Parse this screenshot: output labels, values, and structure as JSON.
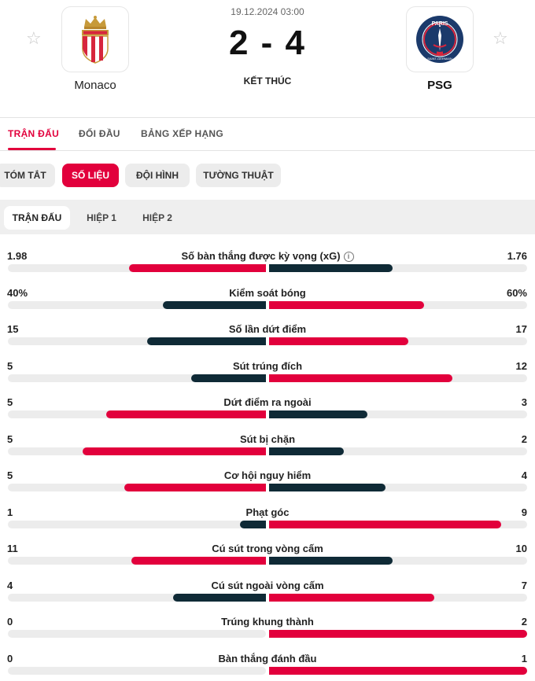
{
  "match": {
    "date": "19.12.2024 03:00",
    "score": "2 - 4",
    "status": "KẾT THÚC",
    "home": {
      "name": "Monaco",
      "logo": "monaco-crest"
    },
    "away": {
      "name": "PSG",
      "logo": "psg-crest"
    }
  },
  "tabs": [
    "TRẬN ĐẤU",
    "ĐỐI ĐẦU",
    "BẢNG XẾP HẠNG"
  ],
  "pills": [
    "TÓM TẮT",
    "SỐ LIỆU",
    "ĐỘI HÌNH",
    "TƯỜNG THUẬT"
  ],
  "periods": [
    "TRẬN ĐẤU",
    "HIỆP 1",
    "HIỆP 2"
  ],
  "colors": {
    "accent": "#e2003c",
    "dark": "#0f2a36",
    "track": "#ececec"
  },
  "stats": [
    {
      "label": "Số bàn thắng được kỳ vọng (xG)",
      "home": "1.98",
      "away": "1.76",
      "home_share": 0.53,
      "away_share": 0.48,
      "winner": "home",
      "info": "i"
    },
    {
      "label": "Kiểm soát bóng",
      "home": "40%",
      "away": "60%",
      "home_share": 0.4,
      "away_share": 0.6,
      "winner": "away"
    },
    {
      "label": "Số lần dứt điểm",
      "home": "15",
      "away": "17",
      "home_share": 0.46,
      "away_share": 0.54,
      "winner": "away"
    },
    {
      "label": "Sút trúng đích",
      "home": "5",
      "away": "12",
      "home_share": 0.29,
      "away_share": 0.71,
      "winner": "away"
    },
    {
      "label": "Dứt điểm ra ngoài",
      "home": "5",
      "away": "3",
      "home_share": 0.62,
      "away_share": 0.38,
      "winner": "home"
    },
    {
      "label": "Sút bị chặn",
      "home": "5",
      "away": "2",
      "home_share": 0.71,
      "away_share": 0.29,
      "winner": "home"
    },
    {
      "label": "Cơ hội nguy hiểm",
      "home": "5",
      "away": "4",
      "home_share": 0.55,
      "away_share": 0.45,
      "winner": "home"
    },
    {
      "label": "Phạt góc",
      "home": "1",
      "away": "9",
      "home_share": 0.1,
      "away_share": 0.9,
      "winner": "away"
    },
    {
      "label": "Cú sút trong vòng cấm",
      "home": "11",
      "away": "10",
      "home_share": 0.52,
      "away_share": 0.48,
      "winner": "home"
    },
    {
      "label": "Cú sút ngoài vòng cấm",
      "home": "4",
      "away": "7",
      "home_share": 0.36,
      "away_share": 0.64,
      "winner": "away"
    },
    {
      "label": "Trúng khung thành",
      "home": "0",
      "away": "2",
      "home_share": 0.0,
      "away_share": 1.0,
      "winner": "away"
    },
    {
      "label": "Bàn thắng đánh đầu",
      "home": "0",
      "away": "1",
      "home_share": 0.0,
      "away_share": 1.0,
      "winner": "away"
    }
  ]
}
